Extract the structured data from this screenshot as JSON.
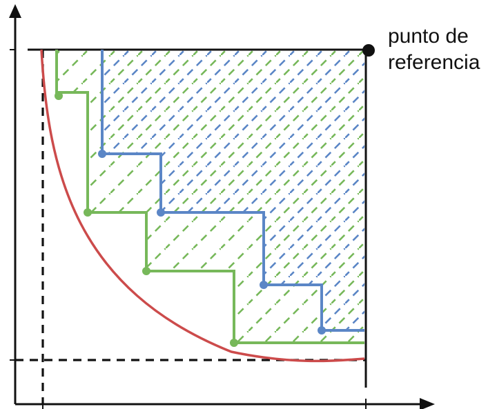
{
  "reference_point": {
    "label_line1": "punto de",
    "label_line2": "referencia"
  },
  "colors": {
    "axis": "#111111",
    "frontier_curve": "#cc4b4b",
    "green_front": "#77b85a",
    "blue_front": "#5b86c6",
    "dashed_guides": "#111111"
  },
  "icons": {
    "reference_point": "filled-circle",
    "x_axis_end": "arrow-right",
    "y_axis_end": "arrow-up"
  }
}
